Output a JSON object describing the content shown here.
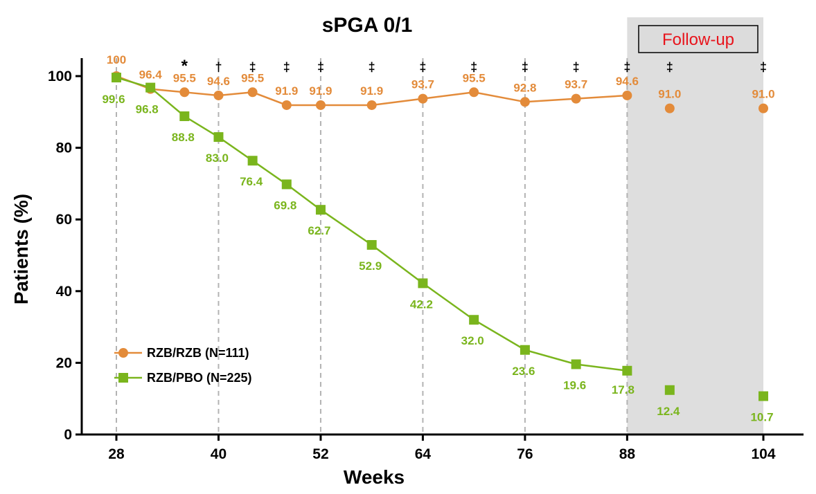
{
  "chart_data": {
    "type": "line",
    "title": "sPGA 0/1",
    "xlabel": "Weeks",
    "ylabel": "Patients (%)",
    "xlim": [
      24,
      114
    ],
    "ylim": [
      0,
      105
    ],
    "xticks": [
      28,
      40,
      52,
      64,
      76,
      88,
      104
    ],
    "yticks": [
      0,
      20,
      40,
      60,
      80,
      100
    ],
    "grid": "dashed vertical lines at weeks 28, 40, 52, 64, 76, 88",
    "legend_position": "lower-left",
    "shaded_region": {
      "label": "Follow-up",
      "x_from": 88,
      "x_to": 104,
      "color": "#dedede"
    },
    "series": [
      {
        "name": "RZB/RZB (N=111)",
        "color": "#e38b3a",
        "marker": "circle",
        "x": [
          28,
          32,
          36,
          40,
          44,
          48,
          52,
          58,
          64,
          70,
          76,
          82,
          88,
          93,
          104
        ],
        "values": [
          100,
          96.4,
          95.5,
          94.6,
          95.5,
          91.9,
          91.9,
          91.9,
          93.7,
          95.5,
          92.8,
          93.7,
          94.6,
          91.0,
          91.0
        ],
        "labels": [
          "100",
          "96.4",
          "95.5",
          "94.6",
          "95.5",
          "91.9",
          "91.9",
          "91.9",
          "93.7",
          "95.5",
          "92.8",
          "93.7",
          "94.6",
          "91.0",
          "91.0"
        ],
        "connected_through_x": 88
      },
      {
        "name": "RZB/PBO (N=225)",
        "color": "#7ab51d",
        "marker": "square",
        "x": [
          28,
          32,
          36,
          40,
          44,
          48,
          52,
          58,
          64,
          70,
          76,
          82,
          88,
          93,
          104
        ],
        "values": [
          99.6,
          96.8,
          88.8,
          83.0,
          76.4,
          69.8,
          62.7,
          52.9,
          42.2,
          32.0,
          23.6,
          19.6,
          17.8,
          12.4,
          10.7
        ],
        "labels": [
          "99.6",
          "96.8",
          "88.8",
          "83.0",
          "76.4",
          "69.8",
          "62.7",
          "52.9",
          "42.2",
          "32.0",
          "23.6",
          "19.6",
          "17.8",
          "12.4",
          "10.7"
        ],
        "connected_through_x": 88
      }
    ],
    "significance_marks": [
      {
        "x": 36,
        "symbol": "*"
      },
      {
        "x": 40,
        "symbol": "†"
      },
      {
        "x": 44,
        "symbol": "‡"
      },
      {
        "x": 48,
        "symbol": "‡"
      },
      {
        "x": 52,
        "symbol": "‡"
      },
      {
        "x": 58,
        "symbol": "‡"
      },
      {
        "x": 64,
        "symbol": "‡"
      },
      {
        "x": 70,
        "symbol": "‡"
      },
      {
        "x": 76,
        "symbol": "‡"
      },
      {
        "x": 82,
        "symbol": "‡"
      },
      {
        "x": 88,
        "symbol": "‡"
      },
      {
        "x": 93,
        "symbol": "‡"
      },
      {
        "x": 104,
        "symbol": "‡"
      }
    ]
  }
}
